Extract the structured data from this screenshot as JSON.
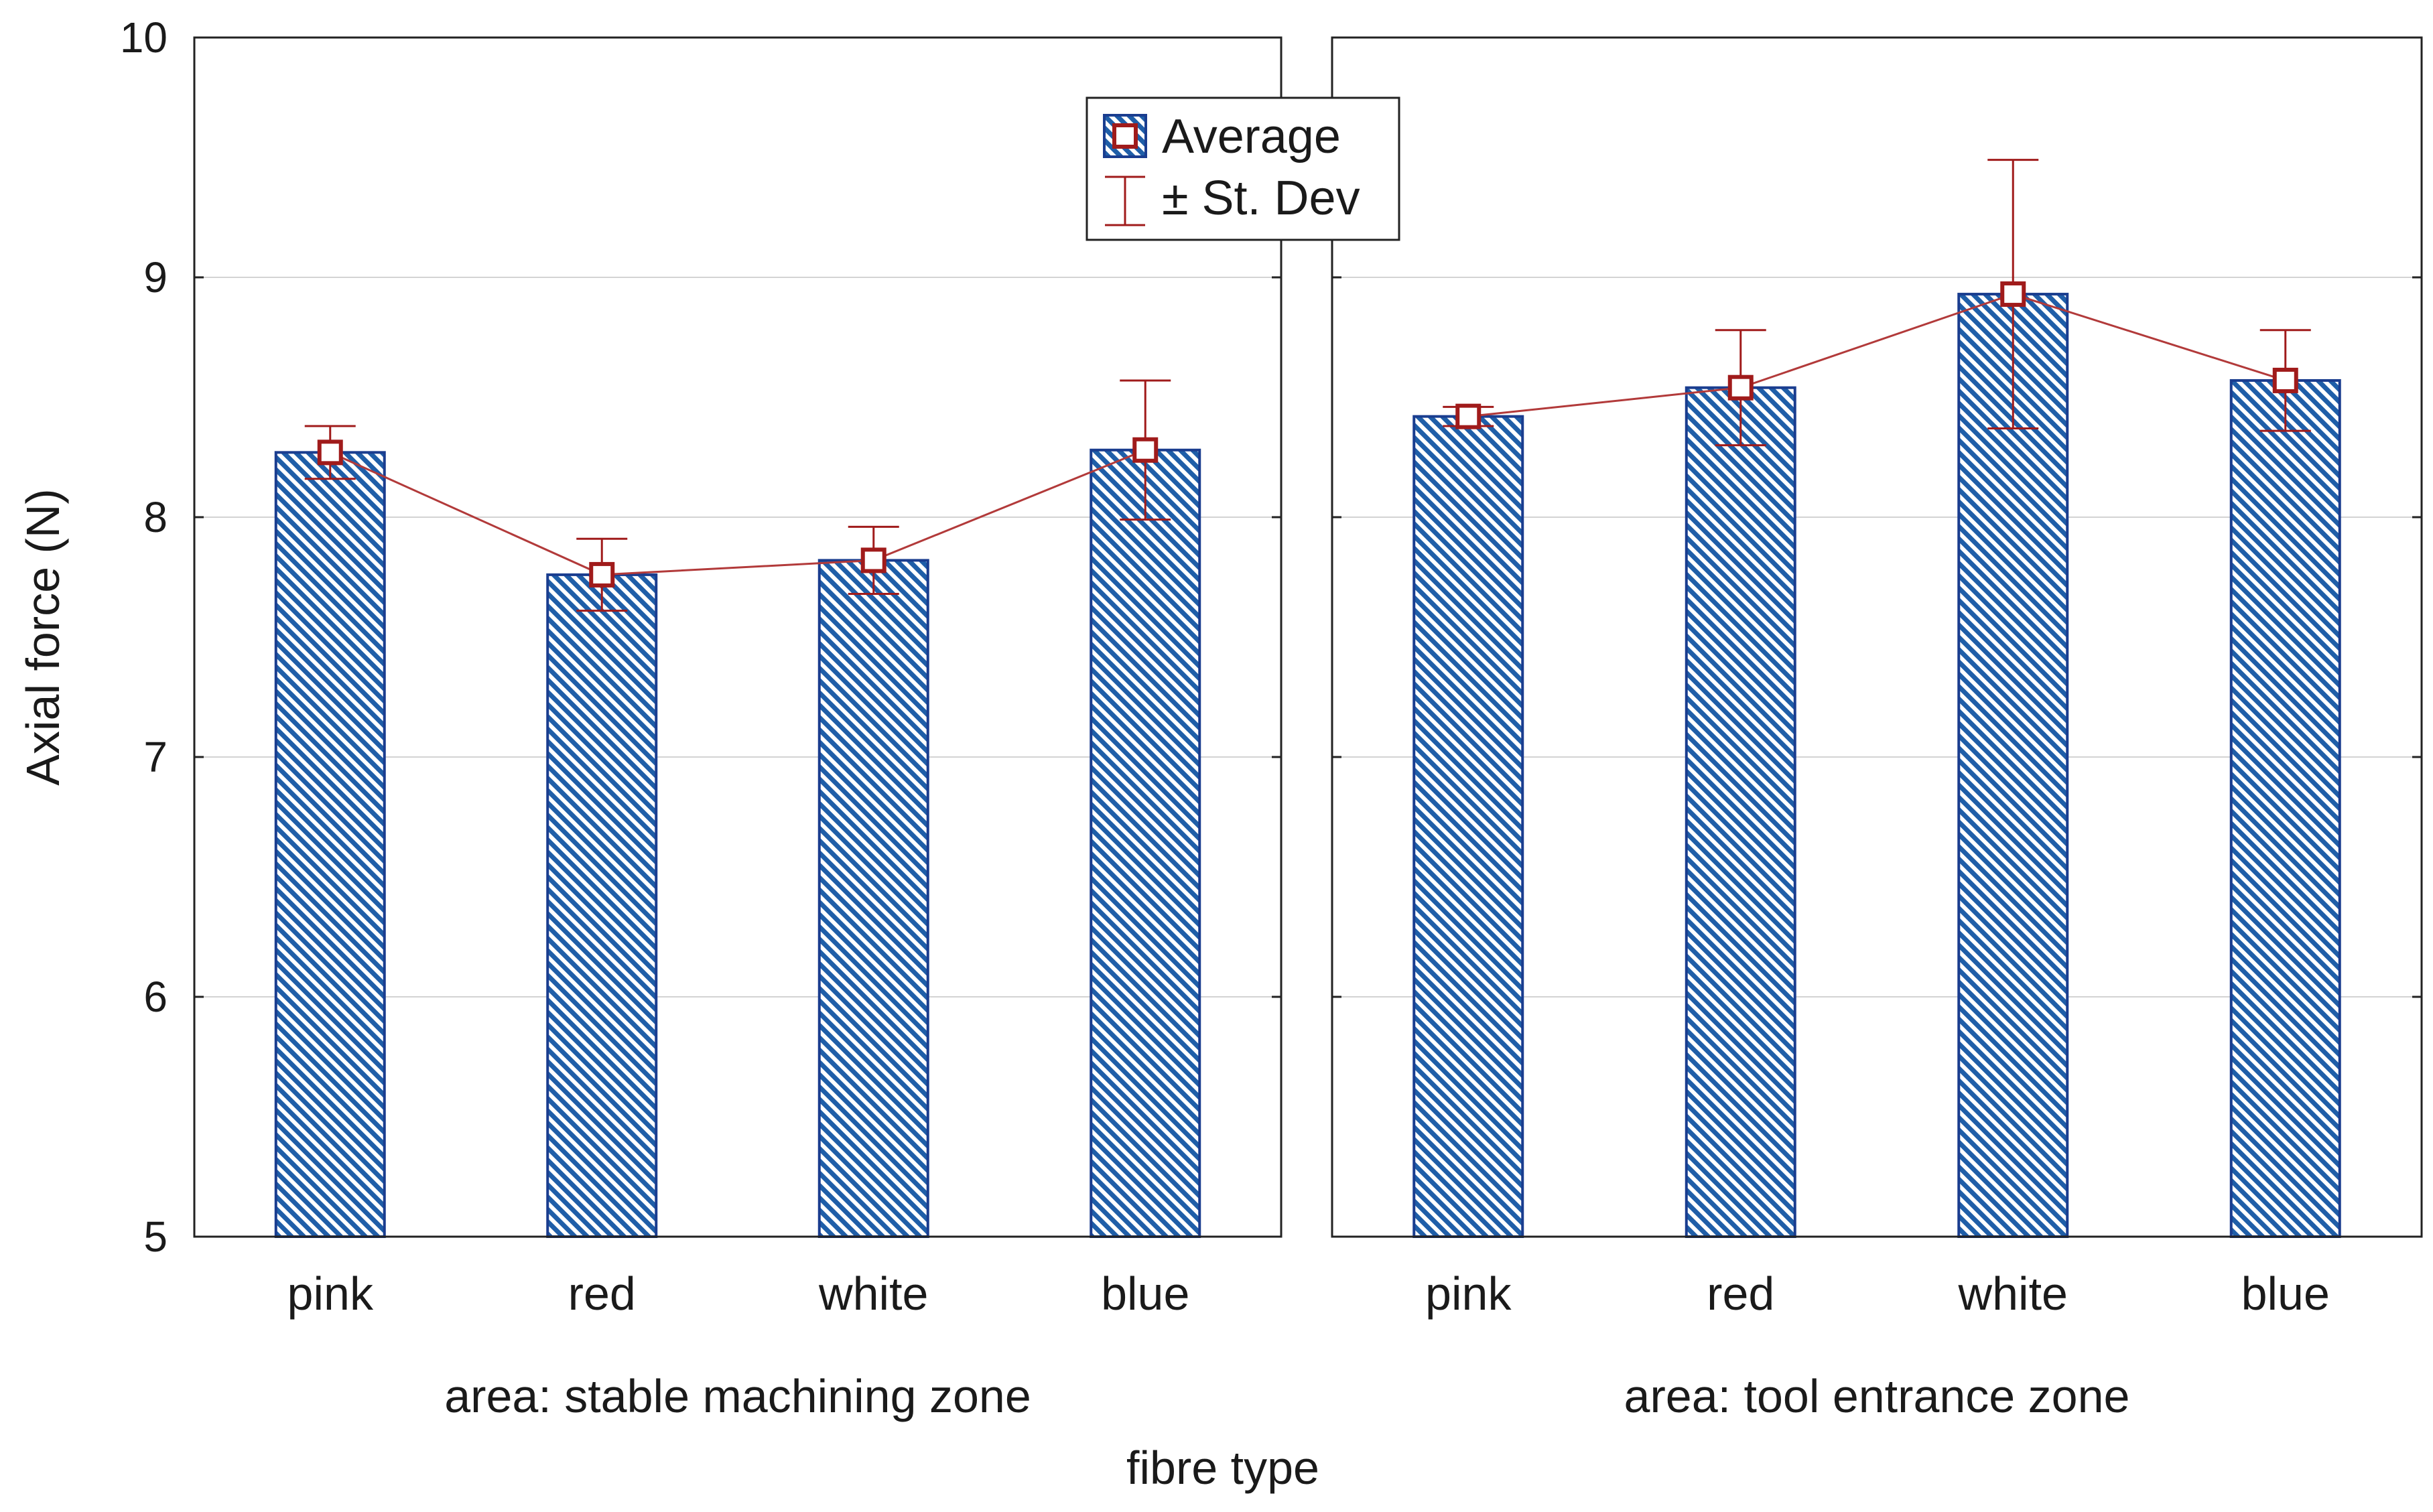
{
  "chart_data": {
    "type": "bar",
    "ylabel": "Axial force (N)",
    "xlabel": "fibre type",
    "ylim": [
      5,
      10
    ],
    "yticks": [
      5,
      6,
      7,
      8,
      9,
      10
    ],
    "grid": true,
    "legend": {
      "position": "top-center",
      "entries": [
        "Average",
        "± St. Dev"
      ]
    },
    "colors": {
      "bar_fill": "#1f5ea8",
      "bar_stroke": "#1a3d8f",
      "marker": "#a01b1b",
      "line": "#b23a3a",
      "grid": "#d3d3d3",
      "frame": "#222222"
    },
    "panels": [
      {
        "label": "area: stable machining zone",
        "categories": [
          "pink",
          "red",
          "white",
          "blue"
        ],
        "averages": [
          8.27,
          7.76,
          7.82,
          8.28
        ],
        "std_dev": [
          0.11,
          0.15,
          0.14,
          0.29
        ]
      },
      {
        "label": "area: tool entrance zone",
        "categories": [
          "pink",
          "red",
          "white",
          "blue"
        ],
        "averages": [
          8.42,
          8.54,
          8.93,
          8.57
        ],
        "std_dev": [
          0.04,
          0.24,
          0.56,
          0.21
        ]
      }
    ]
  }
}
